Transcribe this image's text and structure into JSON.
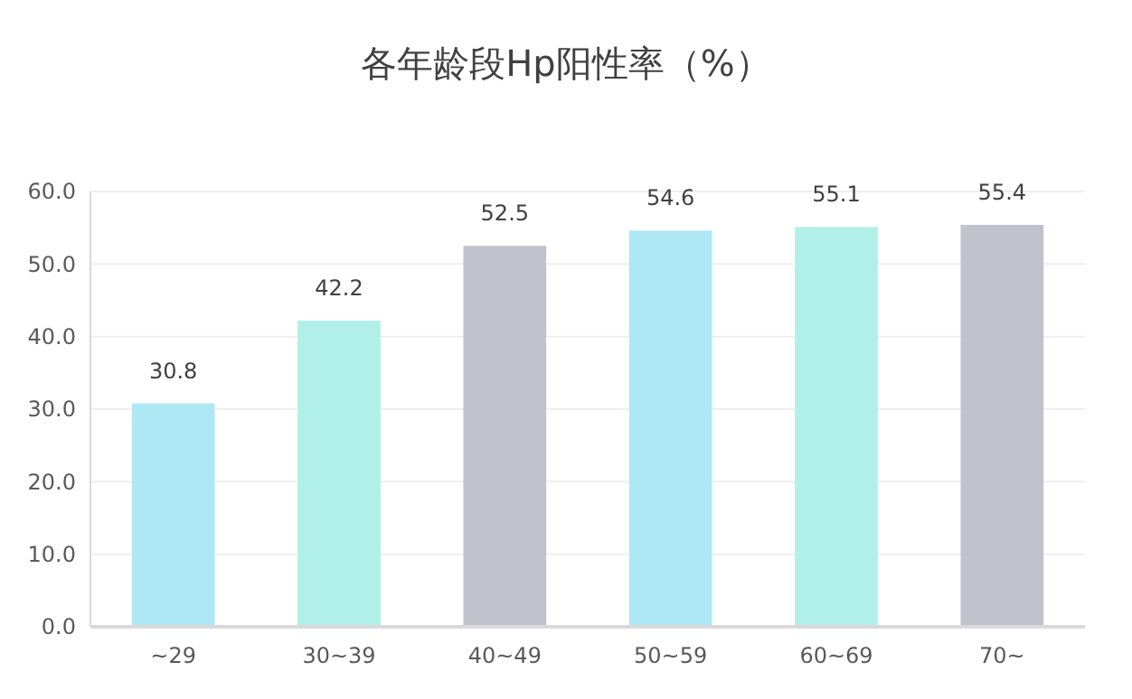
{
  "chart_data": {
    "type": "bar",
    "title": "各年龄段Hp阳性率（%）",
    "categories": [
      "~29",
      "30~39",
      "40~49",
      "50~59",
      "60~69",
      "70~"
    ],
    "values": [
      30.8,
      42.2,
      52.5,
      54.6,
      55.1,
      55.4
    ],
    "colors": [
      "#aee8f4",
      "#b0f0e8",
      "#c0c2cc",
      "#aee8f4",
      "#b0f0e8",
      "#c0c2cc"
    ],
    "ylim": [
      0,
      60
    ],
    "yticks": [
      {
        "value": 0,
        "label": "0.0"
      },
      {
        "value": 10,
        "label": "10.0"
      },
      {
        "value": 20,
        "label": "20.0"
      },
      {
        "value": 30,
        "label": "30.0"
      },
      {
        "value": 40,
        "label": "40.0"
      },
      {
        "value": 50,
        "label": "50.0"
      },
      {
        "value": 60,
        "label": "60.0"
      }
    ],
    "grid": "y",
    "data_labels": true
  }
}
